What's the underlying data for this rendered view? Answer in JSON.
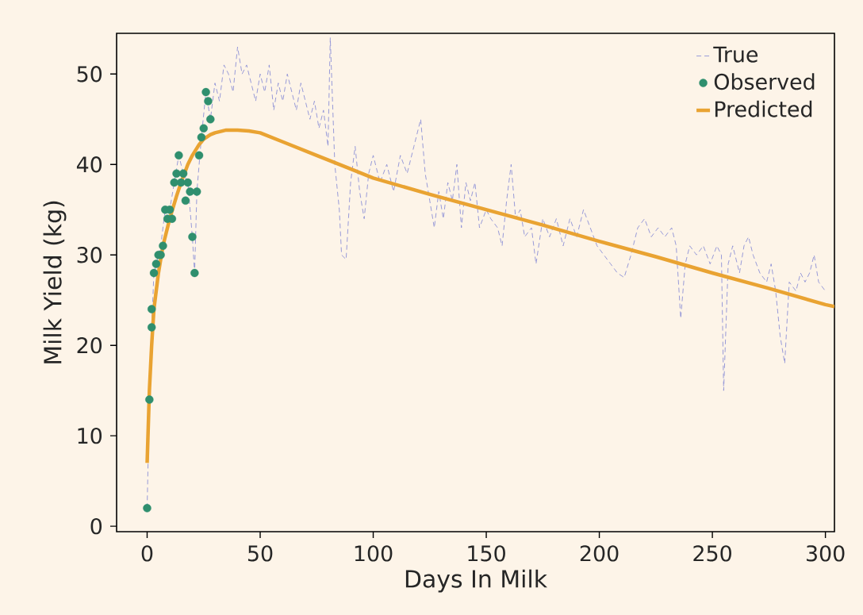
{
  "chart_data": {
    "type": "line",
    "xlabel": "Days In Milk",
    "ylabel": "Milk Yield (kg)",
    "xlim": [
      -13.5,
      304
    ],
    "ylim": [
      -0.6,
      54.5
    ],
    "xticks": [
      0,
      50,
      100,
      150,
      200,
      250,
      300
    ],
    "yticks": [
      0,
      10,
      20,
      30,
      40,
      50
    ],
    "grid": false,
    "legend": "top right",
    "series": [
      {
        "name": "True",
        "line_style": "dashed",
        "color": "#8c8fd6",
        "x": [
          0,
          1,
          2,
          3,
          4,
          5,
          6,
          8,
          10,
          12,
          14,
          16,
          18,
          20,
          21,
          22,
          24,
          26,
          28,
          30,
          32,
          34,
          36,
          38,
          40,
          42,
          44,
          46,
          48,
          50,
          52,
          54,
          56,
          58,
          60,
          62,
          64,
          66,
          68,
          70,
          72,
          74,
          76,
          78,
          80,
          81,
          83,
          85,
          86,
          88,
          90,
          92,
          94,
          96,
          98,
          100,
          103,
          106,
          109,
          112,
          115,
          118,
          121,
          123,
          125,
          127,
          129,
          131,
          133,
          135,
          137,
          139,
          141,
          143,
          145,
          147,
          150,
          152,
          155,
          157,
          159,
          161,
          163,
          165,
          167,
          170,
          172,
          175,
          178,
          181,
          184,
          187,
          190,
          193,
          196,
          199,
          202,
          205,
          208,
          211,
          214,
          217,
          220,
          223,
          226,
          229,
          232,
          234,
          236,
          238,
          240,
          243,
          246,
          249,
          252,
          254,
          255,
          257,
          259,
          262,
          264,
          266,
          268,
          271,
          274,
          276,
          278,
          280,
          282,
          284,
          287,
          289,
          291,
          293,
          295,
          297,
          300
        ],
        "values": [
          2,
          14,
          22,
          28,
          29,
          30,
          31,
          35,
          35,
          38,
          41,
          39,
          38,
          32,
          28,
          37,
          43,
          48,
          45,
          49,
          47,
          51,
          50,
          48,
          53,
          50,
          51,
          49,
          47,
          50,
          48,
          51,
          46,
          49,
          47,
          50,
          48,
          46,
          49,
          47,
          45,
          47,
          44,
          46,
          42,
          54,
          40,
          35,
          30,
          29.5,
          38,
          42,
          37,
          34,
          39,
          41,
          38,
          40,
          37,
          41,
          39,
          42,
          45,
          39,
          36,
          33,
          37,
          34,
          38,
          36,
          40,
          33,
          38,
          36,
          38,
          33,
          35,
          34,
          33,
          31,
          36,
          40,
          34,
          35,
          32,
          33,
          29,
          34,
          32,
          34,
          31,
          34,
          32,
          35,
          33,
          31,
          30,
          29,
          28,
          27.5,
          30,
          33,
          34,
          32,
          33,
          32,
          33,
          31,
          23,
          29,
          31,
          30,
          31,
          29,
          31,
          30,
          15,
          29,
          31,
          28,
          31,
          32,
          30,
          28,
          27,
          29,
          26,
          21,
          18,
          27,
          26,
          28,
          27,
          28,
          30,
          27,
          26
        ]
      },
      {
        "name": "Observed",
        "type": "scatter",
        "marker": "circle",
        "color": "#2f8f6e",
        "x": [
          0,
          1,
          2,
          2,
          3,
          4,
          5,
          6,
          7,
          8,
          9,
          10,
          11,
          12,
          13,
          14,
          15,
          16,
          17,
          18,
          19,
          20,
          21,
          22,
          23,
          24,
          25,
          26,
          27,
          28
        ],
        "values": [
          2,
          14,
          22,
          24,
          28,
          29,
          30,
          30,
          31,
          35,
          34,
          35,
          34,
          38,
          39,
          41,
          38,
          39,
          36,
          38,
          37,
          32,
          28,
          37,
          41,
          43,
          44,
          48,
          47,
          45
        ]
      },
      {
        "name": "Predicted",
        "line_style": "solid",
        "color": "#e9a332",
        "x": [
          0,
          1,
          2,
          3,
          5,
          7,
          10,
          13,
          15,
          18,
          20,
          23,
          25,
          28,
          30,
          35,
          40,
          45,
          50,
          60,
          75,
          90,
          100,
          125,
          150,
          175,
          200,
          225,
          250,
          275,
          300,
          304
        ],
        "values": [
          7,
          15,
          20,
          24,
          28,
          31,
          34,
          36.5,
          38,
          40,
          41,
          42.2,
          42.8,
          43.3,
          43.5,
          43.8,
          43.8,
          43.7,
          43.5,
          42.5,
          41,
          39.5,
          38.5,
          36.7,
          35,
          33.3,
          31.5,
          29.8,
          28,
          26.3,
          24.5,
          24.3
        ]
      }
    ]
  }
}
